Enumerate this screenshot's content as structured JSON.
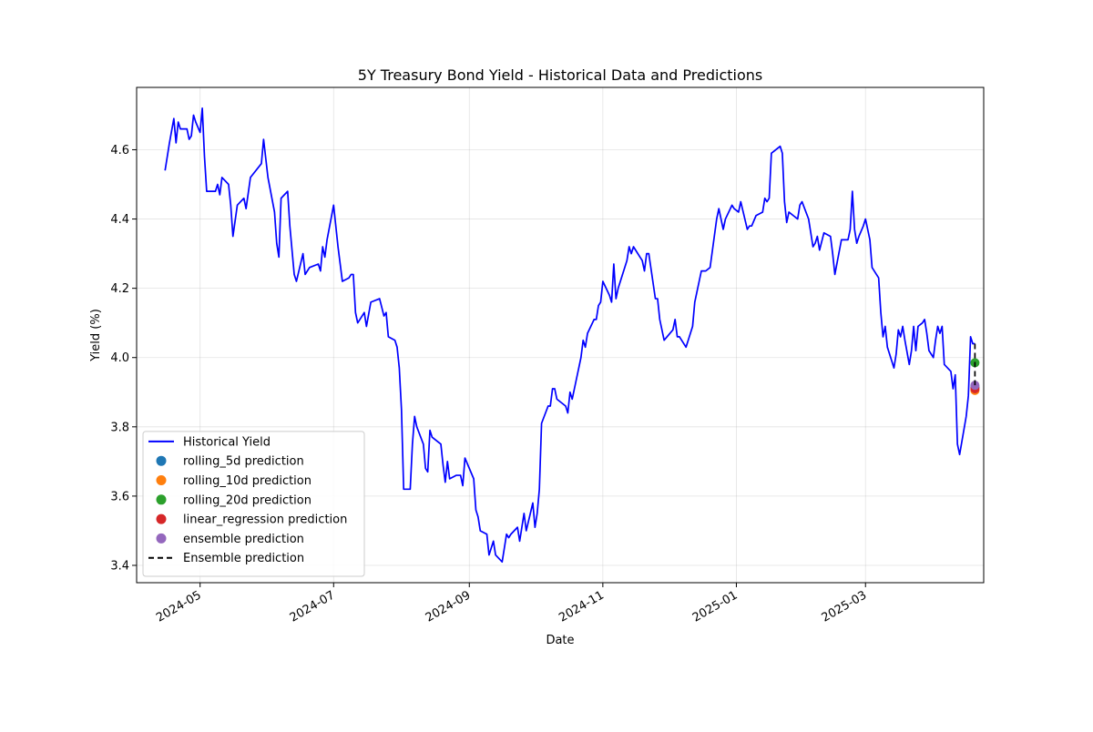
{
  "chart_data": {
    "type": "line",
    "title": "5Y Treasury Bond Yield - Historical Data and Predictions",
    "xlabel": "Date",
    "ylabel": "Yield (%)",
    "xlim": [
      "2024-04-02",
      "2025-04-24"
    ],
    "ylim": [
      3.35,
      4.78
    ],
    "grid": true,
    "legend_position": "lower left",
    "x_ticks": [
      "2024-05",
      "2024-07",
      "2024-09",
      "2024-11",
      "2025-01",
      "2025-03"
    ],
    "y_ticks": [
      3.4,
      3.6,
      3.8,
      4.0,
      4.2,
      4.4,
      4.6
    ],
    "series": [
      {
        "name": "Historical Yield",
        "kind": "line",
        "color": "#0000ff",
        "points": [
          [
            "2024-04-15",
            4.54
          ],
          [
            "2024-04-17",
            4.62
          ],
          [
            "2024-04-19",
            4.69
          ],
          [
            "2024-04-20",
            4.62
          ],
          [
            "2024-04-21",
            4.68
          ],
          [
            "2024-04-22",
            4.66
          ],
          [
            "2024-04-25",
            4.66
          ],
          [
            "2024-04-26",
            4.63
          ],
          [
            "2024-04-27",
            4.64
          ],
          [
            "2024-04-28",
            4.7
          ],
          [
            "2024-04-29",
            4.68
          ],
          [
            "2024-05-01",
            4.65
          ],
          [
            "2024-05-02",
            4.72
          ],
          [
            "2024-05-03",
            4.58
          ],
          [
            "2024-05-04",
            4.48
          ],
          [
            "2024-05-08",
            4.48
          ],
          [
            "2024-05-09",
            4.5
          ],
          [
            "2024-05-10",
            4.47
          ],
          [
            "2024-05-11",
            4.52
          ],
          [
            "2024-05-14",
            4.5
          ],
          [
            "2024-05-15",
            4.44
          ],
          [
            "2024-05-16",
            4.35
          ],
          [
            "2024-05-18",
            4.44
          ],
          [
            "2024-05-21",
            4.46
          ],
          [
            "2024-05-22",
            4.43
          ],
          [
            "2024-05-24",
            4.52
          ],
          [
            "2024-05-29",
            4.56
          ],
          [
            "2024-05-30",
            4.63
          ],
          [
            "2024-06-01",
            4.52
          ],
          [
            "2024-06-04",
            4.42
          ],
          [
            "2024-06-05",
            4.33
          ],
          [
            "2024-06-06",
            4.29
          ],
          [
            "2024-06-07",
            4.46
          ],
          [
            "2024-06-10",
            4.48
          ],
          [
            "2024-06-11",
            4.38
          ],
          [
            "2024-06-13",
            4.24
          ],
          [
            "2024-06-14",
            4.22
          ],
          [
            "2024-06-17",
            4.3
          ],
          [
            "2024-06-18",
            4.24
          ],
          [
            "2024-06-20",
            4.26
          ],
          [
            "2024-06-24",
            4.27
          ],
          [
            "2024-06-25",
            4.25
          ],
          [
            "2024-06-26",
            4.32
          ],
          [
            "2024-06-27",
            4.29
          ],
          [
            "2024-06-28",
            4.34
          ],
          [
            "2024-07-01",
            4.44
          ],
          [
            "2024-07-02",
            4.38
          ],
          [
            "2024-07-03",
            4.32
          ],
          [
            "2024-07-05",
            4.22
          ],
          [
            "2024-07-08",
            4.23
          ],
          [
            "2024-07-09",
            4.24
          ],
          [
            "2024-07-10",
            4.24
          ],
          [
            "2024-07-11",
            4.13
          ],
          [
            "2024-07-12",
            4.1
          ],
          [
            "2024-07-15",
            4.13
          ],
          [
            "2024-07-16",
            4.09
          ],
          [
            "2024-07-18",
            4.16
          ],
          [
            "2024-07-22",
            4.17
          ],
          [
            "2024-07-24",
            4.12
          ],
          [
            "2024-07-25",
            4.13
          ],
          [
            "2024-07-26",
            4.06
          ],
          [
            "2024-07-29",
            4.05
          ],
          [
            "2024-07-30",
            4.03
          ],
          [
            "2024-07-31",
            3.97
          ],
          [
            "2024-08-01",
            3.85
          ],
          [
            "2024-08-02",
            3.62
          ],
          [
            "2024-08-05",
            3.62
          ],
          [
            "2024-08-06",
            3.75
          ],
          [
            "2024-08-07",
            3.83
          ],
          [
            "2024-08-08",
            3.8
          ],
          [
            "2024-08-11",
            3.75
          ],
          [
            "2024-08-12",
            3.68
          ],
          [
            "2024-08-13",
            3.67
          ],
          [
            "2024-08-14",
            3.79
          ],
          [
            "2024-08-15",
            3.77
          ],
          [
            "2024-08-19",
            3.75
          ],
          [
            "2024-08-20",
            3.69
          ],
          [
            "2024-08-21",
            3.64
          ],
          [
            "2024-08-22",
            3.7
          ],
          [
            "2024-08-23",
            3.65
          ],
          [
            "2024-08-26",
            3.66
          ],
          [
            "2024-08-28",
            3.66
          ],
          [
            "2024-08-29",
            3.63
          ],
          [
            "2024-08-30",
            3.71
          ],
          [
            "2024-09-03",
            3.65
          ],
          [
            "2024-09-04",
            3.56
          ],
          [
            "2024-09-05",
            3.54
          ],
          [
            "2024-09-06",
            3.5
          ],
          [
            "2024-09-09",
            3.49
          ],
          [
            "2024-09-10",
            3.43
          ],
          [
            "2024-09-11",
            3.45
          ],
          [
            "2024-09-12",
            3.47
          ],
          [
            "2024-09-13",
            3.43
          ],
          [
            "2024-09-16",
            3.41
          ],
          [
            "2024-09-17",
            3.45
          ],
          [
            "2024-09-18",
            3.49
          ],
          [
            "2024-09-19",
            3.48
          ],
          [
            "2024-09-20",
            3.49
          ],
          [
            "2024-09-23",
            3.51
          ],
          [
            "2024-09-24",
            3.47
          ],
          [
            "2024-09-25",
            3.51
          ],
          [
            "2024-09-26",
            3.55
          ],
          [
            "2024-09-27",
            3.5
          ],
          [
            "2024-09-30",
            3.58
          ],
          [
            "2024-10-01",
            3.51
          ],
          [
            "2024-10-02",
            3.55
          ],
          [
            "2024-10-03",
            3.62
          ],
          [
            "2024-10-04",
            3.81
          ],
          [
            "2024-10-07",
            3.86
          ],
          [
            "2024-10-08",
            3.86
          ],
          [
            "2024-10-09",
            3.91
          ],
          [
            "2024-10-10",
            3.91
          ],
          [
            "2024-10-11",
            3.88
          ],
          [
            "2024-10-15",
            3.86
          ],
          [
            "2024-10-16",
            3.84
          ],
          [
            "2024-10-17",
            3.9
          ],
          [
            "2024-10-18",
            3.88
          ],
          [
            "2024-10-21",
            3.97
          ],
          [
            "2024-10-22",
            4.0
          ],
          [
            "2024-10-23",
            4.05
          ],
          [
            "2024-10-24",
            4.03
          ],
          [
            "2024-10-25",
            4.07
          ],
          [
            "2024-10-28",
            4.11
          ],
          [
            "2024-10-29",
            4.11
          ],
          [
            "2024-10-30",
            4.15
          ],
          [
            "2024-10-31",
            4.16
          ],
          [
            "2024-11-01",
            4.22
          ],
          [
            "2024-11-04",
            4.18
          ],
          [
            "2024-11-05",
            4.16
          ],
          [
            "2024-11-06",
            4.27
          ],
          [
            "2024-11-07",
            4.17
          ],
          [
            "2024-11-08",
            4.2
          ],
          [
            "2024-11-12",
            4.28
          ],
          [
            "2024-11-13",
            4.32
          ],
          [
            "2024-11-14",
            4.3
          ],
          [
            "2024-11-15",
            4.32
          ],
          [
            "2024-11-18",
            4.29
          ],
          [
            "2024-11-19",
            4.28
          ],
          [
            "2024-11-20",
            4.25
          ],
          [
            "2024-11-21",
            4.3
          ],
          [
            "2024-11-22",
            4.3
          ],
          [
            "2024-11-25",
            4.17
          ],
          [
            "2024-11-26",
            4.17
          ],
          [
            "2024-11-27",
            4.11
          ],
          [
            "2024-11-29",
            4.05
          ],
          [
            "2024-12-03",
            4.08
          ],
          [
            "2024-12-04",
            4.11
          ],
          [
            "2024-12-05",
            4.06
          ],
          [
            "2024-12-06",
            4.06
          ],
          [
            "2024-12-09",
            4.03
          ],
          [
            "2024-12-10",
            4.05
          ],
          [
            "2024-12-12",
            4.09
          ],
          [
            "2024-12-13",
            4.16
          ],
          [
            "2024-12-16",
            4.25
          ],
          [
            "2024-12-17",
            4.25
          ],
          [
            "2024-12-18",
            4.25
          ],
          [
            "2024-12-20",
            4.26
          ],
          [
            "2024-12-23",
            4.4
          ],
          [
            "2024-12-24",
            4.43
          ],
          [
            "2024-12-26",
            4.37
          ],
          [
            "2024-12-27",
            4.4
          ],
          [
            "2024-12-30",
            4.44
          ],
          [
            "2024-12-31",
            4.43
          ],
          [
            "2025-01-02",
            4.42
          ],
          [
            "2025-01-03",
            4.45
          ],
          [
            "2025-01-06",
            4.37
          ],
          [
            "2025-01-07",
            4.38
          ],
          [
            "2025-01-08",
            4.38
          ],
          [
            "2025-01-10",
            4.41
          ],
          [
            "2025-01-13",
            4.42
          ],
          [
            "2025-01-14",
            4.46
          ],
          [
            "2025-01-15",
            4.45
          ],
          [
            "2025-01-16",
            4.46
          ],
          [
            "2025-01-17",
            4.59
          ],
          [
            "2025-01-21",
            4.61
          ],
          [
            "2025-01-22",
            4.59
          ],
          [
            "2025-01-23",
            4.45
          ],
          [
            "2025-01-24",
            4.39
          ],
          [
            "2025-01-25",
            4.42
          ],
          [
            "2025-01-27",
            4.41
          ],
          [
            "2025-01-29",
            4.4
          ],
          [
            "2025-01-30",
            4.44
          ],
          [
            "2025-01-31",
            4.45
          ],
          [
            "2025-02-03",
            4.4
          ],
          [
            "2025-02-04",
            4.36
          ],
          [
            "2025-02-05",
            4.32
          ],
          [
            "2025-02-06",
            4.33
          ],
          [
            "2025-02-07",
            4.35
          ],
          [
            "2025-02-08",
            4.31
          ],
          [
            "2025-02-10",
            4.36
          ],
          [
            "2025-02-13",
            4.35
          ],
          [
            "2025-02-14",
            4.3
          ],
          [
            "2025-02-15",
            4.24
          ],
          [
            "2025-02-18",
            4.34
          ],
          [
            "2025-02-19",
            4.34
          ],
          [
            "2025-02-21",
            4.34
          ],
          [
            "2025-02-22",
            4.37
          ],
          [
            "2025-02-23",
            4.48
          ],
          [
            "2025-02-24",
            4.37
          ],
          [
            "2025-02-25",
            4.33
          ],
          [
            "2025-02-26",
            4.35
          ],
          [
            "2025-02-28",
            4.38
          ],
          [
            "2025-03-01",
            4.4
          ],
          [
            "2025-03-03",
            4.34
          ],
          [
            "2025-03-04",
            4.26
          ],
          [
            "2025-03-06",
            4.24
          ],
          [
            "2025-03-07",
            4.23
          ],
          [
            "2025-03-08",
            4.13
          ],
          [
            "2025-03-09",
            4.06
          ],
          [
            "2025-03-10",
            4.09
          ],
          [
            "2025-03-11",
            4.03
          ],
          [
            "2025-03-14",
            3.97
          ],
          [
            "2025-03-15",
            4.01
          ],
          [
            "2025-03-16",
            4.08
          ],
          [
            "2025-03-17",
            4.06
          ],
          [
            "2025-03-18",
            4.09
          ],
          [
            "2025-03-19",
            4.05
          ],
          [
            "2025-03-21",
            3.98
          ],
          [
            "2025-03-22",
            4.02
          ],
          [
            "2025-03-23",
            4.09
          ],
          [
            "2025-03-24",
            4.02
          ],
          [
            "2025-03-25",
            4.09
          ],
          [
            "2025-03-27",
            4.1
          ],
          [
            "2025-03-28",
            4.11
          ],
          [
            "2025-03-29",
            4.07
          ],
          [
            "2025-03-30",
            4.02
          ],
          [
            "2025-04-01",
            4.0
          ],
          [
            "2025-04-02",
            4.05
          ],
          [
            "2025-04-03",
            4.09
          ],
          [
            "2025-04-04",
            4.07
          ],
          [
            "2025-04-05",
            4.09
          ],
          [
            "2025-04-06",
            3.98
          ],
          [
            "2025-04-09",
            3.96
          ],
          [
            "2025-04-10",
            3.91
          ],
          [
            "2025-04-11",
            3.95
          ],
          [
            "2025-04-12",
            3.75
          ],
          [
            "2025-04-13",
            3.72
          ],
          [
            "2025-04-16",
            3.83
          ],
          [
            "2025-04-17",
            3.89
          ],
          [
            "2025-04-18",
            4.06
          ],
          [
            "2025-04-19",
            4.04
          ],
          [
            "2025-04-20",
            4.04
          ]
        ]
      },
      {
        "name": "rolling_5d prediction",
        "kind": "point",
        "color": "#1f77b4",
        "date": "2025-04-20",
        "value": 3.915
      },
      {
        "name": "rolling_10d prediction",
        "kind": "point",
        "color": "#ff7f0e",
        "date": "2025-04-20",
        "value": 3.905
      },
      {
        "name": "rolling_20d prediction",
        "kind": "point",
        "color": "#2ca02c",
        "date": "2025-04-20",
        "value": 3.985
      },
      {
        "name": "linear_regression prediction",
        "kind": "point",
        "color": "#d62728",
        "date": "2025-04-20",
        "value": 3.91
      },
      {
        "name": "ensemble prediction",
        "kind": "point",
        "color": "#9467bd",
        "date": "2025-04-20",
        "value": 3.92
      },
      {
        "name": "Ensemble prediction",
        "kind": "dashed",
        "color": "#000000",
        "points": [
          [
            "2025-04-20",
            4.04
          ],
          [
            "2025-04-20",
            3.92
          ]
        ]
      }
    ]
  }
}
